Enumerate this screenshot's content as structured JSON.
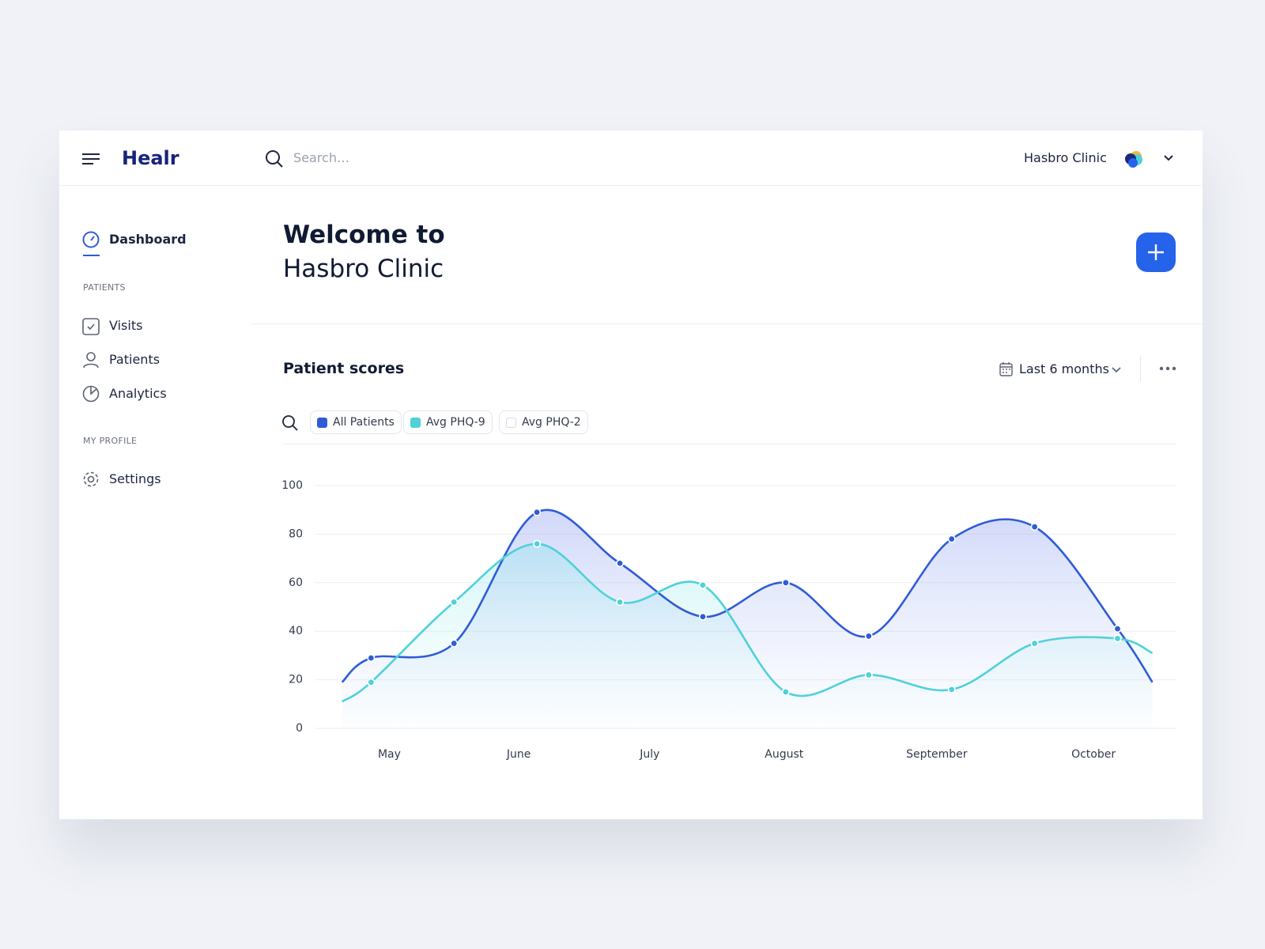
{
  "header": {
    "brand": "Healr",
    "search_placeholder": "Search…",
    "clinic": "Hasbro Clinic"
  },
  "sidebar": {
    "dashboard": "Dashboard",
    "sections": [
      {
        "title": "PATIENTS",
        "items": [
          "Visits",
          "Patients",
          "Analytics"
        ]
      },
      {
        "title": "MY PROFILE",
        "items": [
          "Settings"
        ]
      }
    ]
  },
  "welcome": {
    "line1": "Welcome to",
    "line2": "Hasbro Clinic"
  },
  "chart_data": {
    "type": "line",
    "title": "Patient scores",
    "period": "Last 6 months",
    "x": [
      -0.35,
      0,
      1,
      2,
      3,
      4,
      5,
      6,
      7,
      8,
      9,
      9.42
    ],
    "series": [
      {
        "name": "All Patients",
        "color": "#2f5bd6",
        "values": [
          19,
          29,
          35,
          89,
          68,
          46,
          60,
          38,
          78,
          83,
          41,
          19
        ]
      },
      {
        "name": "Avg PHQ-9",
        "color": "#4fd1d9",
        "values": [
          11,
          19,
          52,
          76,
          52,
          59,
          15,
          22,
          16,
          35,
          37,
          31
        ]
      }
    ],
    "hidden_series": [
      {
        "name": "Avg PHQ-2"
      }
    ],
    "xlim": [
      -0.68,
      9.71
    ],
    "xticks": [
      {
        "value": 0.22,
        "label": "May"
      },
      {
        "value": 1.78,
        "label": "June"
      },
      {
        "value": 3.36,
        "label": "July"
      },
      {
        "value": 4.98,
        "label": "August"
      },
      {
        "value": 6.82,
        "label": "September"
      },
      {
        "value": 8.71,
        "label": "October"
      }
    ],
    "ylim": [
      0,
      100
    ],
    "yticks": [
      0,
      20,
      40,
      60,
      80,
      100
    ],
    "grid": true
  }
}
